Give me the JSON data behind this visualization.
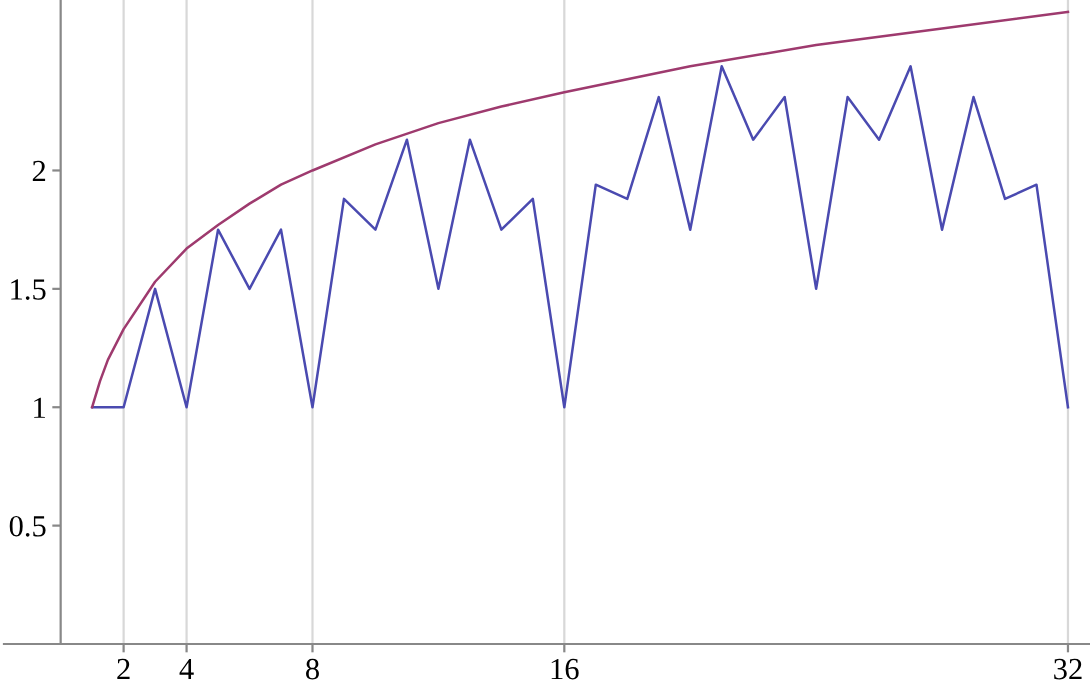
{
  "chart_data": {
    "type": "line",
    "x": [
      1,
      2,
      3,
      4,
      5,
      6,
      7,
      8,
      9,
      10,
      11,
      12,
      13,
      14,
      15,
      16,
      17,
      18,
      19,
      20,
      21,
      22,
      23,
      24,
      25,
      26,
      27,
      28,
      29,
      30,
      31,
      32
    ],
    "series": [
      {
        "color": "#4a4ab0",
        "values": [
          1,
          1,
          1.5,
          1,
          1.75,
          1.5,
          1.75,
          1,
          1.88,
          1.75,
          2.13,
          1.5,
          2.13,
          1.75,
          1.88,
          1,
          1.94,
          1.88,
          2.31,
          1.75,
          2.44,
          2.13,
          2.31,
          1.5,
          2.31,
          2.13,
          2.44,
          1.75,
          2.31,
          1.88,
          1.94,
          1
        ]
      },
      {
        "color": "#9e3a6e",
        "x": [
          1,
          1.25,
          1.5,
          2,
          3,
          4,
          5,
          6,
          7,
          8,
          10,
          12,
          14,
          16,
          20,
          24,
          28,
          32
        ],
        "values": [
          1,
          1.11,
          1.2,
          1.33,
          1.53,
          1.67,
          1.77,
          1.86,
          1.94,
          2,
          2.11,
          2.2,
          2.27,
          2.33,
          2.44,
          2.53,
          2.6,
          2.67
        ]
      }
    ],
    "xlim": [
      -1.8,
      32.7
    ],
    "ylim": [
      0,
      2.72
    ],
    "xticks": [
      2,
      4,
      8,
      16,
      32
    ],
    "yticks": [
      0.5,
      1,
      1.5,
      2
    ],
    "grid": "x",
    "marker": "none",
    "line_style": "solid",
    "legend": false
  }
}
